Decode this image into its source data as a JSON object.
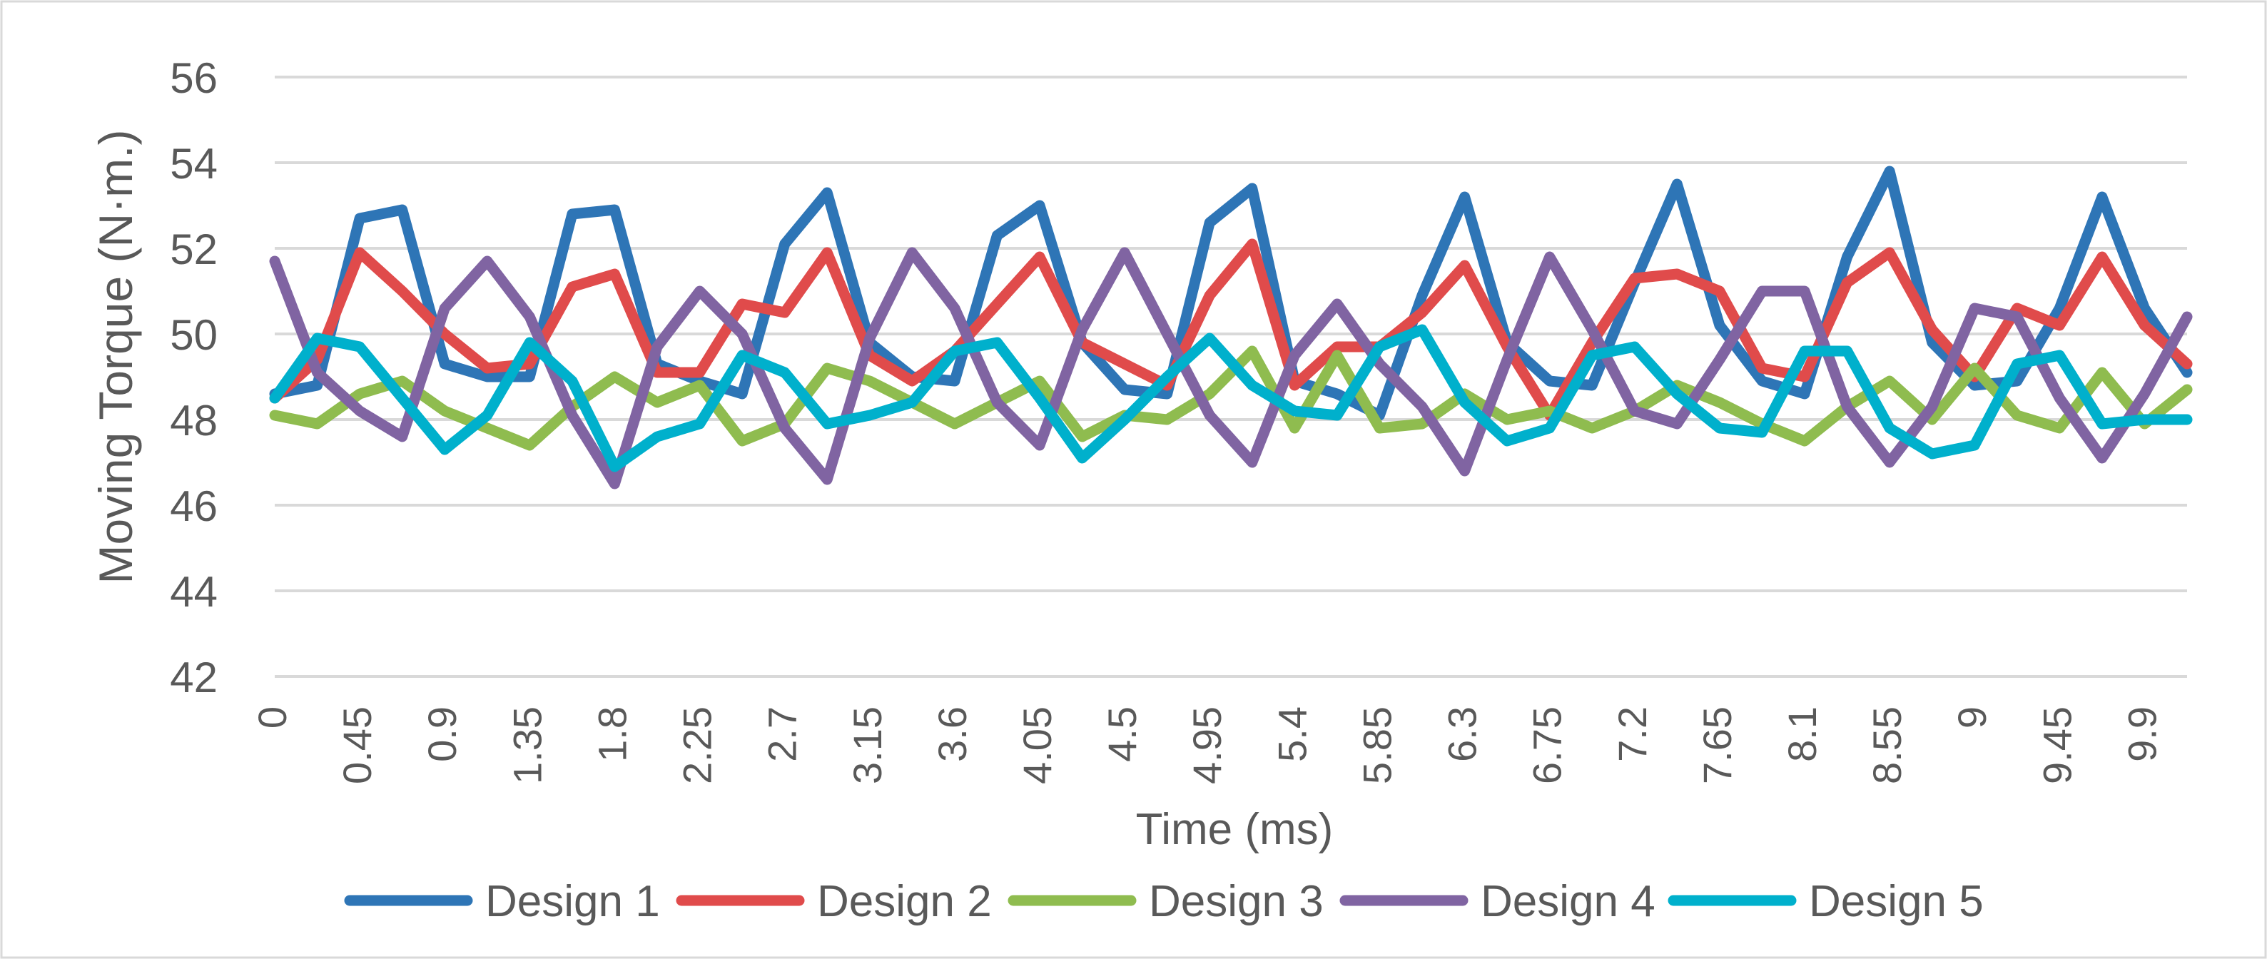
{
  "chart_data": {
    "type": "line",
    "title": "",
    "xlabel": "Time (ms)",
    "ylabel": "Moving Torque (N·m.)",
    "ylim": [
      42,
      56
    ],
    "yticks": [
      42,
      44,
      46,
      48,
      50,
      52,
      54,
      56
    ],
    "grid": true,
    "legend_position": "bottom",
    "x": [
      0,
      0.225,
      0.45,
      0.675,
      0.9,
      1.125,
      1.35,
      1.575,
      1.8,
      2.025,
      2.25,
      2.475,
      2.7,
      2.925,
      3.15,
      3.375,
      3.6,
      3.825,
      4.05,
      4.275,
      4.5,
      4.725,
      4.95,
      5.175,
      5.4,
      5.625,
      5.85,
      6.075,
      6.3,
      6.525,
      6.75,
      6.975,
      7.2,
      7.425,
      7.65,
      7.875,
      8.1,
      8.325,
      8.55,
      8.775,
      9,
      9.225,
      9.45,
      9.675,
      9.9,
      10.125
    ],
    "x_tick_labels": [
      "0",
      "0.45",
      "0.9",
      "1.35",
      "1.8",
      "2.25",
      "2.7",
      "3.15",
      "3.6",
      "4.05",
      "4.5",
      "4.95",
      "5.4",
      "5.85",
      "6.3",
      "6.75",
      "7.2",
      "7.65",
      "8.1",
      "8.55",
      "9",
      "9.45",
      "9.9"
    ],
    "series": [
      {
        "name": "Design 1",
        "color": "#2E75B6",
        "values": [
          48.6,
          48.8,
          52.7,
          52.9,
          49.3,
          49.0,
          49.0,
          52.8,
          52.9,
          49.3,
          48.9,
          48.6,
          52.1,
          53.3,
          49.8,
          49.0,
          48.9,
          52.3,
          53.0,
          49.8,
          48.7,
          48.6,
          52.6,
          53.4,
          48.9,
          48.6,
          48.1,
          50.9,
          53.2,
          49.8,
          48.9,
          48.8,
          51.2,
          53.5,
          50.2,
          48.9,
          48.6,
          51.8,
          53.8,
          49.8,
          48.8,
          48.9,
          50.6,
          53.2,
          50.6,
          49.1
        ]
      },
      {
        "name": "Design 2",
        "color": "#E04B4B",
        "values": [
          48.5,
          49.4,
          51.9,
          51.0,
          50.0,
          49.2,
          49.3,
          51.1,
          51.4,
          49.1,
          49.1,
          50.7,
          50.5,
          51.9,
          49.5,
          48.9,
          49.6,
          50.7,
          51.8,
          49.8,
          49.3,
          48.8,
          50.9,
          52.1,
          48.8,
          49.7,
          49.7,
          50.5,
          51.6,
          49.7,
          48.1,
          49.8,
          51.3,
          51.4,
          51.0,
          49.2,
          49.0,
          51.2,
          51.9,
          50.1,
          49.0,
          50.6,
          50.2,
          51.8,
          50.2,
          49.3
        ]
      },
      {
        "name": "Design 3",
        "color": "#8FBC4F",
        "values": [
          48.1,
          47.9,
          48.6,
          48.9,
          48.2,
          47.8,
          47.4,
          48.3,
          49.0,
          48.4,
          48.8,
          47.5,
          47.9,
          49.2,
          48.9,
          48.4,
          47.9,
          48.4,
          48.9,
          47.6,
          48.1,
          48.0,
          48.6,
          49.6,
          47.8,
          49.5,
          47.8,
          47.9,
          48.6,
          48.0,
          48.2,
          47.8,
          48.2,
          48.8,
          48.4,
          47.9,
          47.5,
          48.3,
          48.9,
          48.0,
          49.2,
          48.1,
          47.8,
          49.1,
          47.9,
          48.7
        ]
      },
      {
        "name": "Design 4",
        "color": "#8064A2",
        "values": [
          51.7,
          49.1,
          48.2,
          47.6,
          50.6,
          51.7,
          50.4,
          48.1,
          46.5,
          49.7,
          51.0,
          50.0,
          47.8,
          46.6,
          49.9,
          51.9,
          50.6,
          48.4,
          47.4,
          50.1,
          51.9,
          50.0,
          48.1,
          47.0,
          49.5,
          50.7,
          49.3,
          48.3,
          46.8,
          49.4,
          51.8,
          50.1,
          48.2,
          47.9,
          49.4,
          51.0,
          51.0,
          48.3,
          47.0,
          48.3,
          50.6,
          50.4,
          48.5,
          47.1,
          48.6,
          50.4
        ]
      },
      {
        "name": "Design 5",
        "color": "#00B0CC",
        "values": [
          48.5,
          49.9,
          49.7,
          48.5,
          47.3,
          48.1,
          49.8,
          48.9,
          46.9,
          47.6,
          47.9,
          49.5,
          49.1,
          47.9,
          48.1,
          48.4,
          49.6,
          49.8,
          48.5,
          47.1,
          48.0,
          49.0,
          49.9,
          48.8,
          48.2,
          48.1,
          49.7,
          50.1,
          48.4,
          47.5,
          47.8,
          49.5,
          49.7,
          48.6,
          47.8,
          47.7,
          49.6,
          49.6,
          47.8,
          47.2,
          47.4,
          49.3,
          49.5,
          47.9,
          48.0,
          48.0
        ]
      }
    ]
  }
}
